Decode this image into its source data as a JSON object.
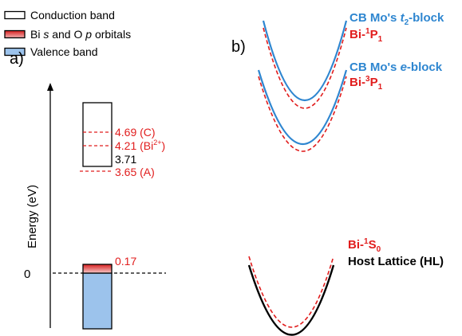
{
  "legend": {
    "items": [
      {
        "label": "Conduction band"
      },
      {
        "pre": "Bi ",
        "s": "s",
        "mid": " and O ",
        "p": "p",
        "post": " orbitals"
      },
      {
        "label": "Valence band"
      }
    ]
  },
  "panel_a": {
    "label": "a)",
    "yaxis_label": "Energy (eV)",
    "zero_label": "0",
    "levels": {
      "cb": "3.71",
      "c": "4.69 (C)",
      "bi2": "4.21 (Bi",
      "bi2_sup": "2+",
      "bi2_close": ")",
      "a": "3.65 (A)",
      "vb_top": "0.17"
    }
  },
  "panel_b": {
    "label": "b)",
    "labels": {
      "t2_pre": "CB Mo's ",
      "t2_t": "t",
      "t2_sub": "2",
      "t2_post": "-block",
      "bi1p1_pre": "Bi-",
      "bi1p1_sup": "1",
      "bi1p1_main": "P",
      "bi1p1_sub": "1",
      "e_pre": "CB Mo's ",
      "e_e": "e",
      "e_post": "-block",
      "bi3p1_pre": "Bi-",
      "bi3p1_sup": "3",
      "bi3p1_main": "P",
      "bi3p1_sub": "1",
      "bi1s0_pre": "Bi-",
      "bi1s0_sup": "1",
      "bi1s0_main": "S",
      "bi1s0_sub": "0",
      "hl": "Host Lattice (HL)"
    }
  },
  "colors": {
    "blue": "#2e86d0",
    "red": "#e11d1d",
    "black": "#000000",
    "valence_fill": "#9cc3ec"
  }
}
